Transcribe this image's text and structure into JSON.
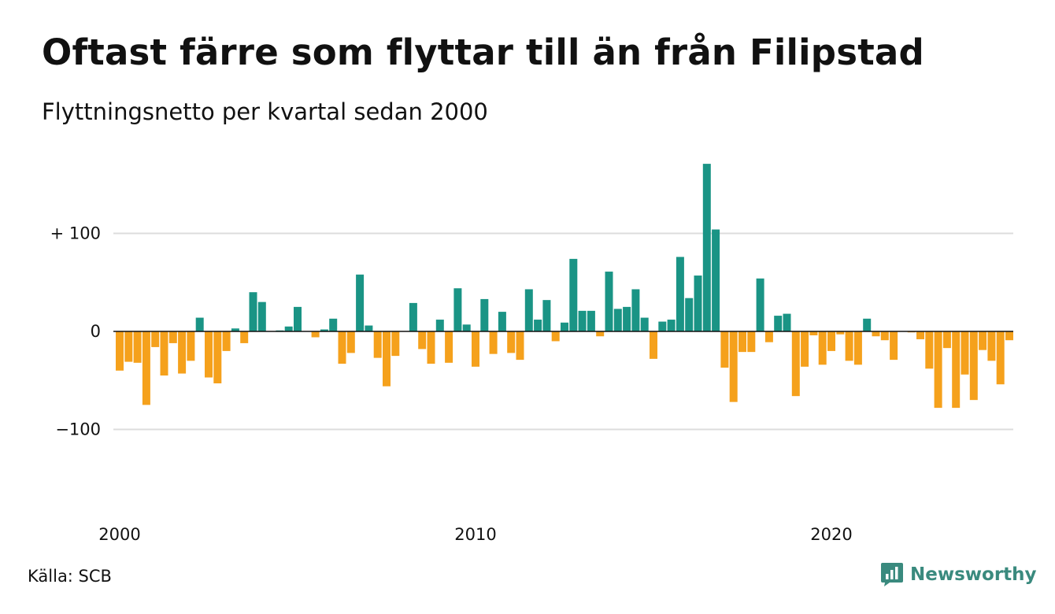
{
  "header": {
    "title": "Oftast färre som flyttar till än från Filipstad",
    "subtitle": "Flyttningsnetto per kvartal sedan 2000"
  },
  "footer": {
    "source": "Källa: SCB",
    "brand": "Newsworthy",
    "brand_icon": "newsworthy-chart-icon"
  },
  "colors": {
    "positive": "#1a9485",
    "negative": "#f5a11c",
    "grid": "#dddddd",
    "zero_line": "#111111",
    "brand": "#3a8a7e"
  },
  "chart_data": {
    "type": "bar",
    "title": "Oftast färre som flyttar till än från Filipstad",
    "subtitle": "Flyttningsnetto per kvartal sedan 2000",
    "x_start": "2000 Q1",
    "x_tick_labels": [
      "2000",
      "2010",
      "2020"
    ],
    "y_tick_labels": [
      "+ 100",
      "0",
      "−100"
    ],
    "y_ticks": [
      100,
      0,
      -100
    ],
    "ylim": [
      -180,
      180
    ],
    "grid": true,
    "values": [
      -40,
      -31,
      -32,
      -75,
      -16,
      -45,
      -12,
      -43,
      -30,
      14,
      -47,
      -53,
      -20,
      3,
      -12,
      40,
      30,
      0,
      1,
      5,
      25,
      0,
      -6,
      2,
      13,
      -33,
      -22,
      58,
      6,
      -27,
      -56,
      -25,
      0,
      29,
      -18,
      -33,
      12,
      -32,
      44,
      7,
      -36,
      33,
      -23,
      20,
      -22,
      -29,
      43,
      12,
      32,
      -10,
      9,
      74,
      21,
      21,
      -5,
      61,
      23,
      25,
      43,
      14,
      -28,
      10,
      12,
      76,
      34,
      57,
      171,
      104,
      -37,
      -72,
      -21,
      -21,
      54,
      -11,
      16,
      18,
      -66,
      -36,
      -4,
      -34,
      -20,
      -3,
      -30,
      -34,
      13,
      -5,
      -9,
      -29,
      0,
      -1,
      -8,
      -38,
      -78,
      -17,
      -78,
      -44,
      -70,
      -19,
      -30,
      -54,
      -9
    ]
  }
}
